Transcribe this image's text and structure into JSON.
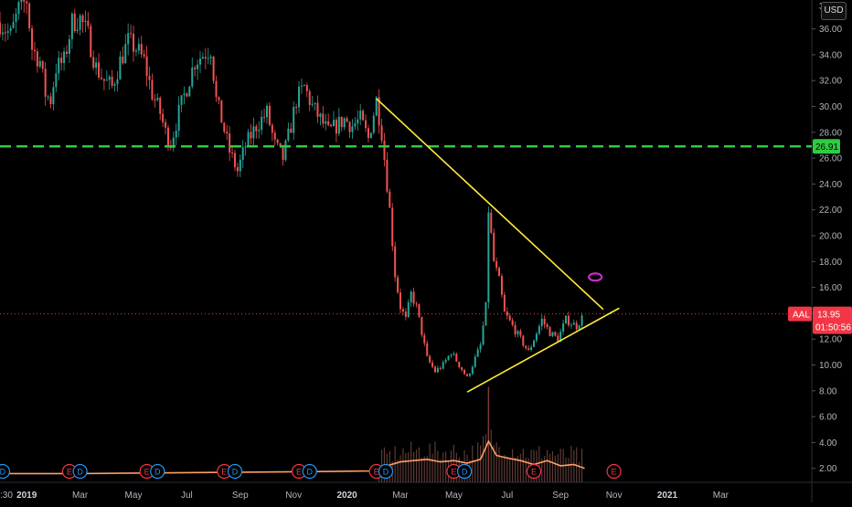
{
  "currency_button": "USD",
  "chart_data": {
    "type": "candlestick",
    "symbol": "AAL",
    "currency": "USD",
    "last_price": 13.95,
    "last_price_label": "13.95",
    "countdown": "01:50:56",
    "horizontal_level": 26.91,
    "horizontal_level_label": "26.91",
    "y_axis": {
      "ticks": [
        2.0,
        4.0,
        6.0,
        8.0,
        10.0,
        12.0,
        14.0,
        16.0,
        18.0,
        20.0,
        22.0,
        24.0,
        26.0,
        28.0,
        30.0,
        32.0,
        34.0,
        36.0
      ],
      "tick_labels": [
        "2.00",
        "4.00",
        "6.00",
        "8.00",
        "10.00",
        "12.00",
        "14.00",
        "16.00",
        "18.00",
        "20.00",
        "22.00",
        "24.00",
        "26.00",
        "28.00",
        "30.00",
        "32.00",
        "34.00",
        "36.00"
      ],
      "partial_top_label": "3",
      "range": [
        1.2,
        38.5
      ]
    },
    "x_axis": {
      "labels": [
        ":30",
        "2019",
        "Mar",
        "May",
        "Jul",
        "Sep",
        "Nov",
        "2020",
        "Mar",
        "May",
        "Jul",
        "Sep",
        "Nov",
        "2021",
        "Mar"
      ],
      "bold_labels": [
        "2019",
        "2020",
        "2021"
      ],
      "months_from_start": [
        0,
        1,
        3,
        5,
        7,
        9,
        11,
        13,
        15,
        17,
        19,
        21,
        23,
        25,
        27
      ]
    },
    "price_path": [
      [
        0.0,
        36.5
      ],
      [
        0.4,
        35.5
      ],
      [
        0.7,
        37.5
      ],
      [
        1.0,
        38.2
      ],
      [
        1.2,
        34.5
      ],
      [
        1.5,
        33.5
      ],
      [
        1.7,
        31.0
      ],
      [
        1.9,
        30.5
      ],
      [
        2.1,
        33.0
      ],
      [
        2.4,
        33.5
      ],
      [
        2.7,
        36.5
      ],
      [
        3.0,
        36.8
      ],
      [
        3.3,
        35.5
      ],
      [
        3.6,
        33.0
      ],
      [
        3.9,
        32.0
      ],
      [
        4.2,
        31.5
      ],
      [
        4.5,
        33.5
      ],
      [
        4.8,
        35.0
      ],
      [
        5.1,
        34.5
      ],
      [
        5.4,
        33.5
      ],
      [
        5.7,
        31.0
      ],
      [
        6.0,
        29.5
      ],
      [
        6.2,
        28.0
      ],
      [
        6.4,
        27.2
      ],
      [
        6.7,
        29.5
      ],
      [
        7.0,
        31.5
      ],
      [
        7.3,
        33.5
      ],
      [
        7.6,
        34.0
      ],
      [
        7.9,
        34.5
      ],
      [
        8.1,
        30.5
      ],
      [
        8.3,
        29.0
      ],
      [
        8.6,
        26.5
      ],
      [
        8.9,
        25.0
      ],
      [
        9.2,
        27.0
      ],
      [
        9.6,
        28.5
      ],
      [
        10.0,
        29.5
      ],
      [
        10.3,
        27.0
      ],
      [
        10.6,
        26.0
      ],
      [
        10.9,
        28.5
      ],
      [
        11.1,
        30.5
      ],
      [
        11.4,
        31.5
      ],
      [
        11.7,
        30.0
      ],
      [
        12.0,
        29.0
      ],
      [
        12.3,
        28.0
      ],
      [
        12.6,
        28.5
      ],
      [
        12.9,
        29.0
      ],
      [
        13.2,
        28.5
      ],
      [
        13.5,
        29.0
      ],
      [
        13.8,
        27.5
      ],
      [
        14.1,
        30.5
      ],
      [
        14.3,
        28.0
      ],
      [
        14.4,
        26.0
      ],
      [
        14.6,
        22.0
      ],
      [
        14.8,
        17.0
      ],
      [
        15.0,
        14.5
      ],
      [
        15.2,
        13.5
      ],
      [
        15.4,
        15.5
      ],
      [
        15.6,
        14.5
      ],
      [
        15.8,
        12.5
      ],
      [
        16.0,
        10.5
      ],
      [
        16.3,
        9.5
      ],
      [
        16.6,
        10.0
      ],
      [
        16.9,
        11.0
      ],
      [
        17.2,
        10.0
      ],
      [
        17.5,
        9.0
      ],
      [
        17.8,
        10.5
      ],
      [
        18.0,
        11.5
      ],
      [
        18.2,
        14.5
      ],
      [
        18.3,
        22.0
      ],
      [
        18.5,
        18.0
      ],
      [
        18.7,
        16.5
      ],
      [
        18.9,
        14.0
      ],
      [
        19.2,
        13.0
      ],
      [
        19.5,
        12.0
      ],
      [
        19.8,
        11.0
      ],
      [
        20.1,
        12.5
      ],
      [
        20.3,
        13.5
      ],
      [
        20.6,
        12.5
      ],
      [
        20.9,
        12.0
      ],
      [
        21.2,
        13.5
      ],
      [
        21.6,
        13.0
      ],
      [
        21.9,
        13.95
      ]
    ],
    "volume_path": [
      [
        0.0,
        1.6
      ],
      [
        3.0,
        1.6
      ],
      [
        6.0,
        1.65
      ],
      [
        9.0,
        1.7
      ],
      [
        12.0,
        1.75
      ],
      [
        14.0,
        1.8
      ],
      [
        14.5,
        2.2
      ],
      [
        15.0,
        2.5
      ],
      [
        15.5,
        2.6
      ],
      [
        16.0,
        2.7
      ],
      [
        16.5,
        2.5
      ],
      [
        17.0,
        2.6
      ],
      [
        17.5,
        2.4
      ],
      [
        18.0,
        2.7
      ],
      [
        18.3,
        4.1
      ],
      [
        18.6,
        3.0
      ],
      [
        19.0,
        2.8
      ],
      [
        19.5,
        2.6
      ],
      [
        20.0,
        2.3
      ],
      [
        20.5,
        2.6
      ],
      [
        21.0,
        2.2
      ],
      [
        21.5,
        2.3
      ],
      [
        21.9,
        2.0
      ]
    ],
    "trendlines": [
      {
        "name": "descending-resistance",
        "color": "#ffeb3b",
        "from": [
          14.1,
          30.6
        ],
        "to": [
          22.6,
          14.3
        ]
      },
      {
        "name": "ascending-support",
        "color": "#ffeb3b",
        "from": [
          17.5,
          7.9
        ],
        "to": [
          23.2,
          14.4
        ]
      }
    ],
    "marker": {
      "shape": "ellipse",
      "color": "#c030c0",
      "at": [
        22.3,
        16.8
      ]
    },
    "event_markers": [
      {
        "type": "D",
        "label": "D",
        "month": 0.1
      },
      {
        "type": "E",
        "label": "E",
        "month": 2.6
      },
      {
        "type": "D",
        "label": "D",
        "month": 3.0
      },
      {
        "type": "E",
        "label": "E",
        "month": 5.5
      },
      {
        "type": "D",
        "label": "D",
        "month": 5.9
      },
      {
        "type": "E",
        "label": "E",
        "month": 8.4
      },
      {
        "type": "D",
        "label": "D",
        "month": 8.8
      },
      {
        "type": "E",
        "label": "E",
        "month": 11.2
      },
      {
        "type": "D",
        "label": "D",
        "month": 11.6
      },
      {
        "type": "E",
        "label": "E",
        "month": 14.1
      },
      {
        "type": "D",
        "label": "D",
        "month": 14.45
      },
      {
        "type": "E",
        "label": "E",
        "month": 17.0
      },
      {
        "type": "D",
        "label": "D",
        "month": 17.4
      },
      {
        "type": "E",
        "label": "E",
        "month": 20.0
      },
      {
        "type": "E",
        "label": "E",
        "month": 23.0
      }
    ],
    "colors": {
      "background": "#000000",
      "up": "#26a69a",
      "down": "#ef5350",
      "level_line": "#2ecc40",
      "level_label_bg": "#2ecc40",
      "price_label_bg": "#f23645",
      "volume_line": "#ff9e65",
      "event_e": "#f23645",
      "event_d": "#2196f3"
    }
  }
}
